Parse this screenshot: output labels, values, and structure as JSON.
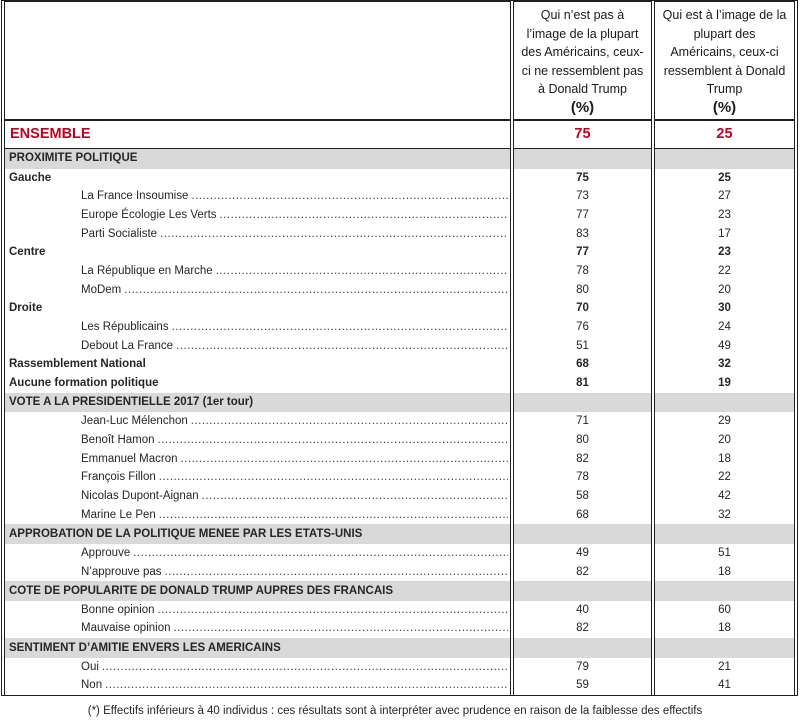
{
  "colors": {
    "accent_red": "#c00020",
    "section_bg": "#d9d9d9",
    "border": "#1f1f1f"
  },
  "header": {
    "col1_title": "Qui n’est pas à l’image de la plupart des Américains, ceux-ci ne ressemblent pas à Donald Trump",
    "col1_pct": "(%)",
    "col2_title": "Qui est à l’image de la plupart des Américains, ceux-ci ressemblent à Donald Trump",
    "col2_pct": "(%)"
  },
  "ensemble": {
    "label": "ENSEMBLE",
    "v1": "75",
    "v2": "25"
  },
  "sections": [
    {
      "title": "PROXIMITE POLITIQUE",
      "rows": [
        {
          "label": "Gauche",
          "type": "category",
          "v1": "75",
          "v2": "25"
        },
        {
          "label": "La France Insoumise",
          "type": "item",
          "v1": "73",
          "v2": "27"
        },
        {
          "label": "Europe Écologie Les Verts",
          "type": "item",
          "v1": "77",
          "v2": "23"
        },
        {
          "label": "Parti Socialiste",
          "type": "item",
          "v1": "83",
          "v2": "17"
        },
        {
          "label": "Centre",
          "type": "category",
          "v1": "77",
          "v2": "23"
        },
        {
          "label": "La République en Marche",
          "type": "item",
          "v1": "78",
          "v2": "22"
        },
        {
          "label": "MoDem",
          "type": "item",
          "v1": "80",
          "v2": "20"
        },
        {
          "label": "Droite",
          "type": "category",
          "v1": "70",
          "v2": "30"
        },
        {
          "label": "Les Républicains",
          "type": "item",
          "v1": "76",
          "v2": "24"
        },
        {
          "label": "Debout La France",
          "type": "item",
          "v1": "51",
          "v2": "49"
        },
        {
          "label": "Rassemblement National",
          "type": "category",
          "v1": "68",
          "v2": "32"
        },
        {
          "label": "Aucune formation politique",
          "type": "category",
          "v1": "81",
          "v2": "19"
        }
      ]
    },
    {
      "title": "VOTE A LA PRESIDENTIELLE 2017 (1er tour)",
      "rows": [
        {
          "label": "Jean-Luc Mélenchon",
          "type": "item",
          "v1": "71",
          "v2": "29"
        },
        {
          "label": "Benoît Hamon",
          "type": "item",
          "v1": "80",
          "v2": "20"
        },
        {
          "label": "Emmanuel Macron",
          "type": "item",
          "v1": "82",
          "v2": "18"
        },
        {
          "label": "François Fillon",
          "type": "item",
          "v1": "78",
          "v2": "22"
        },
        {
          "label": "Nicolas Dupont-Aignan",
          "type": "item",
          "v1": "58",
          "v2": "42"
        },
        {
          "label": "Marine Le Pen",
          "type": "item",
          "v1": "68",
          "v2": "32"
        }
      ]
    },
    {
      "title": "APPROBATION DE LA POLITIQUE MENEE PAR LES ETATS-UNIS",
      "rows": [
        {
          "label": "Approuve",
          "type": "item",
          "v1": "49",
          "v2": "51"
        },
        {
          "label": "N’approuve pas",
          "type": "item",
          "v1": "82",
          "v2": "18"
        }
      ]
    },
    {
      "title": "COTE DE POPULARITE DE DONALD TRUMP AUPRES DES FRANCAIS",
      "rows": [
        {
          "label": "Bonne opinion",
          "type": "item",
          "v1": "40",
          "v2": "60"
        },
        {
          "label": "Mauvaise opinion",
          "type": "item",
          "v1": "82",
          "v2": "18"
        }
      ]
    },
    {
      "title": "SENTIMENT D’AMITIE ENVERS LES AMERICAINS",
      "rows": [
        {
          "label": "Oui",
          "type": "item",
          "v1": "79",
          "v2": "21"
        },
        {
          "label": "Non",
          "type": "item",
          "v1": "59",
          "v2": "41"
        }
      ]
    }
  ],
  "footnote": "(*) Effectifs inférieurs à 40 individus : ces résultats sont à interpréter avec prudence en raison de la faiblesse des effectifs"
}
